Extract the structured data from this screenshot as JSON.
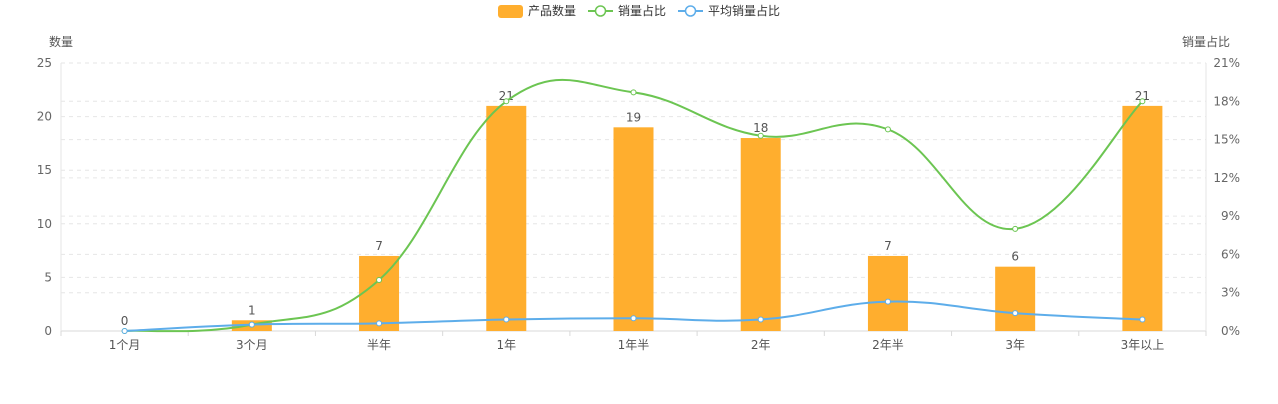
{
  "chart_data": {
    "type": "bar",
    "categories": [
      "1个月",
      "3个月",
      "半年",
      "1年",
      "1年半",
      "2年",
      "2年半",
      "3年",
      "3年以上"
    ],
    "series": [
      {
        "name": "产品数量",
        "type": "bar",
        "axis": "left",
        "color": "#FFAE2E",
        "values": [
          0,
          1,
          7,
          21,
          19,
          18,
          7,
          6,
          21
        ]
      },
      {
        "name": "销量占比",
        "type": "line",
        "axis": "right",
        "color": "#6CC552",
        "values": [
          0,
          0.5,
          4.0,
          18.0,
          18.7,
          15.3,
          15.8,
          8.0,
          18.0
        ]
      },
      {
        "name": "平均销量占比",
        "type": "line",
        "axis": "right",
        "color": "#5DADEA",
        "values": [
          0,
          0.5,
          0.6,
          0.9,
          1.0,
          0.9,
          2.3,
          1.4,
          0.9
        ]
      }
    ],
    "y_left": {
      "label": "数量",
      "ylim": [
        0,
        25
      ],
      "ticks": [
        0,
        5,
        10,
        15,
        20,
        25
      ]
    },
    "y_right": {
      "label": "销量占比",
      "ylim": [
        0,
        21
      ],
      "ticks": [
        0,
        3,
        6,
        9,
        12,
        15,
        18,
        21
      ],
      "unit": "%"
    },
    "grid": true,
    "legend_position": "top-center"
  }
}
